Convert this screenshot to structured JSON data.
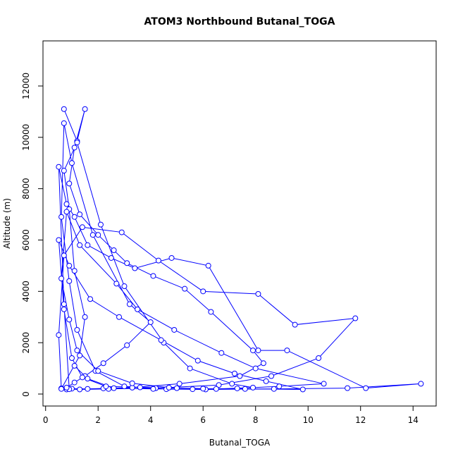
{
  "chart_data": {
    "type": "scatter-line",
    "title": "ATOM3 Northbound Butanal_TOGA",
    "x_label": "Butanal_TOGA",
    "y_label": "Altitude (m)",
    "xlim": [
      -0.1,
      14.88
    ],
    "ylim": [
      -467,
      13757
    ],
    "xticks": [
      0,
      2,
      4,
      6,
      8,
      10,
      12,
      14
    ],
    "yticks": [
      0,
      2000,
      4000,
      6000,
      8000,
      10000,
      12000
    ],
    "color": "#0000ff",
    "x": [
      0.7,
      1.2,
      1.5,
      1.1,
      0.9,
      1.3,
      2.0,
      2.6,
      3.1,
      4.1,
      5.3,
      6.3,
      7.9,
      8.3,
      7.4,
      5.1,
      3.3,
      2.2,
      1.6,
      1.0,
      0.8,
      0.6,
      0.5,
      0.7,
      1.4,
      2.9,
      4.3,
      6.0,
      8.1,
      9.5,
      11.8,
      10.4,
      8.6,
      6.6,
      4.2,
      2.4,
      1.3,
      0.9,
      0.7,
      0.5,
      0.8,
      1.1,
      1.6,
      2.5,
      3.4,
      4.8,
      6.2,
      8.1,
      9.2,
      12.2,
      14.3,
      11.5,
      8.7,
      6.1,
      4.6,
      3.0,
      1.9,
      1.2,
      0.9,
      0.6,
      0.7,
      1.0,
      1.8,
      3.2,
      4.0,
      3.1,
      2.2,
      1.5,
      1.1,
      0.8,
      0.6,
      1.3,
      1.5,
      1.1,
      0.9,
      0.7,
      1.2,
      2.1,
      3.0,
      4.5,
      5.5,
      7.1,
      7.9,
      6.5,
      5.0,
      3.6,
      2.3,
      1.4,
      1.0,
      0.7,
      0.5,
      0.9,
      1.7,
      2.8,
      4.4,
      5.8,
      7.2,
      8.4,
      9.8,
      7.6,
      6.0,
      4.7,
      3.3,
      2.0,
      1.2,
      0.9,
      0.6,
      0.8,
      1.3,
      2.7,
      3.5,
      4.9,
      6.7,
      8.0,
      10.6,
      8.9,
      7.3,
      5.6,
      4.1,
      2.6,
      1.6,
      1.1
    ],
    "y": [
      11100,
      9850,
      11100,
      9600,
      8200,
      7000,
      6200,
      5600,
      5100,
      4600,
      4100,
      3200,
      1700,
      1200,
      700,
      400,
      250,
      220,
      200,
      210,
      180,
      220,
      2300,
      5400,
      6500,
      6300,
      5200,
      4000,
      3900,
      2700,
      2950,
      1400,
      700,
      350,
      230,
      200,
      180,
      190,
      3500,
      8850,
      7400,
      6900,
      5800,
      5300,
      4900,
      5300,
      5000,
      1700,
      1700,
      230,
      400,
      230,
      200,
      180,
      190,
      300,
      900,
      2500,
      4400,
      6900,
      10550,
      9000,
      6200,
      3500,
      2800,
      1900,
      1200,
      700,
      450,
      250,
      200,
      1500,
      3000,
      4800,
      7200,
      8700,
      9800,
      6600,
      4200,
      2000,
      1000,
      400,
      250,
      200,
      230,
      260,
      300,
      650,
      1400,
      3300,
      6000,
      5000,
      3700,
      3000,
      2100,
      1300,
      800,
      500,
      180,
      200,
      210,
      250,
      420,
      900,
      1700,
      2900,
      4500,
      7100,
      5800,
      4300,
      3300,
      2500,
      1600,
      1000,
      400,
      300,
      220,
      190,
      200,
      230,
      600,
      1100
    ]
  }
}
